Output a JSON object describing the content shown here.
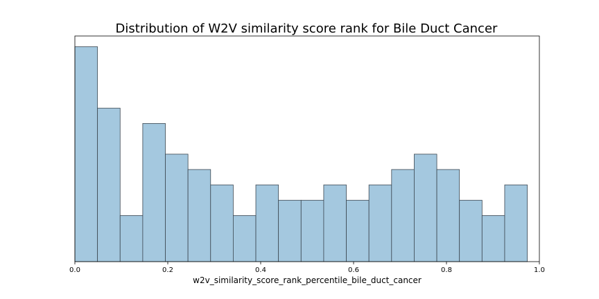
{
  "chart_data": {
    "type": "bar",
    "title": "Distribution of W2V similarity score rank for Bile Duct Cancer",
    "xlabel": "w2v_similarity_score_rank_percentile_bile_duct_cancer",
    "ylabel": "",
    "xlim": [
      0.0,
      1.0
    ],
    "y_axis_visible": false,
    "grid": false,
    "x_ticks": [
      "0.0",
      "0.2",
      "0.4",
      "0.6",
      "0.8",
      "1.0"
    ],
    "x_tick_values": [
      0.0,
      0.2,
      0.4,
      0.6,
      0.8,
      1.0
    ],
    "bin_width": 0.0487,
    "bin_starts": [
      0.0,
      0.0487,
      0.0974,
      0.1461,
      0.1948,
      0.2435,
      0.2922,
      0.3409,
      0.3896,
      0.4383,
      0.487,
      0.5357,
      0.5844,
      0.6331,
      0.6818,
      0.7305,
      0.7792,
      0.8279,
      0.8766,
      0.9253
    ],
    "values": [
      14,
      10,
      3,
      9,
      7,
      6,
      5,
      3,
      5,
      4,
      4,
      5,
      4,
      5,
      6,
      7,
      6,
      4,
      3,
      5
    ],
    "ylim": [
      0,
      14.7
    ],
    "colors": {
      "bar_fill": "#a4c8df",
      "bar_edge": "#3b4650"
    }
  }
}
